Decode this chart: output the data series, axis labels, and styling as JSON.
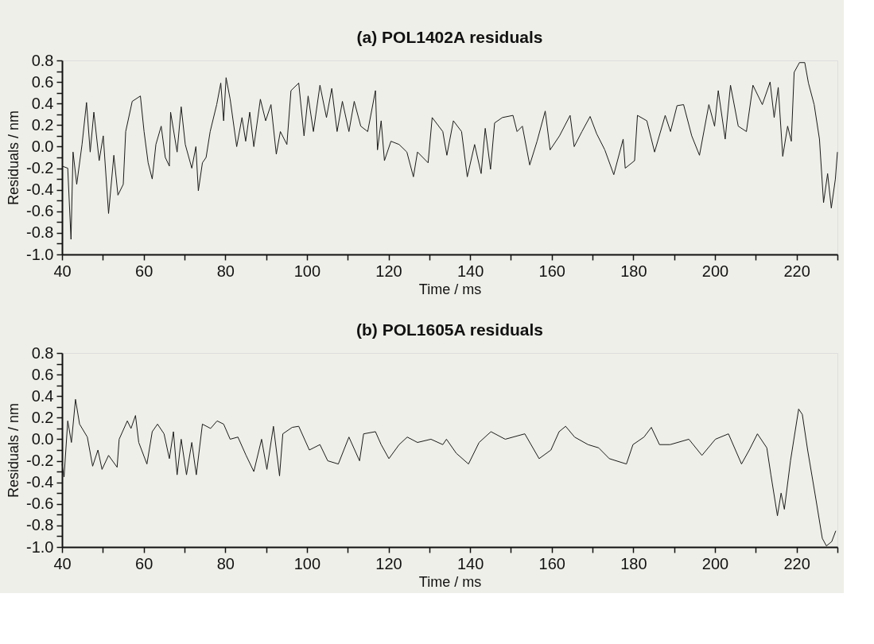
{
  "chart_data": [
    {
      "type": "line",
      "title": "(a) POL1402A residuals",
      "xlabel": "Time / ms",
      "ylabel": "Residuals / nm",
      "xlim": [
        40,
        230
      ],
      "ylim": [
        -1.0,
        0.8
      ],
      "xticks": [
        40,
        {
          "value": 50,
          "label": null
        },
        60,
        {
          "value": 70,
          "label": null
        },
        80,
        {
          "value": 90,
          "label": null
        },
        100,
        {
          "value": 110,
          "label": null
        },
        120,
        {
          "value": 130,
          "label": null
        },
        140,
        {
          "value": 150,
          "label": null
        },
        160,
        {
          "value": 170,
          "label": null
        },
        180,
        {
          "value": 190,
          "label": null
        },
        200,
        {
          "value": 210,
          "label": null
        },
        220,
        {
          "value": 230,
          "label": null
        }
      ],
      "yticks": [
        {
          "value": 0.8,
          "label": "0.8"
        },
        {
          "value": 0.7,
          "label": null
        },
        {
          "value": 0.6,
          "label": "0.6"
        },
        {
          "value": 0.5,
          "label": null
        },
        {
          "value": 0.4,
          "label": "0.4"
        },
        {
          "value": 0.3,
          "label": null
        },
        {
          "value": 0.2,
          "label": "0.2"
        },
        {
          "value": 0.1,
          "label": null
        },
        {
          "value": 0,
          "label": "0.0"
        },
        {
          "value": -0.1,
          "label": null
        },
        {
          "value": -0.2,
          "label": "-0.2"
        },
        {
          "value": -0.3,
          "label": null
        },
        {
          "value": -0.4,
          "label": "-0.4"
        },
        {
          "value": -0.5,
          "label": null
        },
        {
          "value": -0.6,
          "label": "-0.6"
        },
        {
          "value": -0.7,
          "label": null
        },
        {
          "value": -0.8,
          "label": "-0.8"
        },
        {
          "value": -0.9,
          "label": null
        },
        {
          "value": -1.0,
          "label": "-1.0"
        }
      ],
      "grid": false,
      "marker": "none",
      "line_style": "solid",
      "series": [
        {
          "color": "#1a1a1a",
          "x": [
            40.0,
            41.4,
            42.2,
            42.7,
            43.6,
            44.9,
            46.0,
            46.9,
            47.8,
            49.1,
            50.1,
            51.4,
            52.7,
            53.7,
            55.0,
            55.6,
            57.2,
            59.2,
            60.1,
            61.1,
            62.1,
            63.0,
            64.3,
            65.3,
            66.3,
            66.6,
            68.2,
            69.2,
            70.2,
            71.8,
            72.8,
            73.4,
            74.4,
            75.3,
            76.3,
            77.9,
            78.9,
            79.6,
            80.2,
            81.2,
            82.8,
            84.1,
            85.0,
            86.0,
            87.0,
            88.6,
            89.9,
            91.2,
            92.5,
            93.5,
            95.1,
            96.1,
            98.0,
            99.3,
            100.3,
            101.6,
            103.2,
            104.8,
            106.1,
            107.4,
            108.7,
            110.3,
            111.6,
            113.2,
            114.9,
            116.8,
            117.3,
            118.2,
            119.0,
            120.6,
            122.6,
            124.5,
            126.1,
            127.1,
            129.7,
            130.7,
            133.3,
            134.3,
            135.9,
            137.9,
            139.3,
            141.1,
            142.7,
            143.7,
            145.0,
            146.0,
            147.9,
            150.5,
            151.5,
            152.8,
            154.6,
            156.4,
            158.4,
            159.6,
            161.9,
            164.5,
            165.5,
            167.4,
            169.4,
            171.0,
            173.0,
            175.2,
            177.5,
            178.0,
            180.3,
            181.0,
            183.3,
            185.2,
            187.8,
            189.1,
            190.7,
            192.3,
            194.3,
            196.2,
            198.5,
            199.9,
            200.8,
            202.5,
            203.8,
            205.7,
            207.7,
            209.3,
            211.6,
            213.5,
            214.5,
            215.5,
            216.6,
            217.8,
            218.7,
            219.4,
            220.7,
            222.0,
            222.9,
            224.3,
            225.6,
            226.6,
            227.6,
            228.5,
            229.5,
            230.0
          ],
          "values": [
            -0.18,
            -0.2,
            -0.86,
            -0.05,
            -0.35,
            0.02,
            0.41,
            -0.05,
            0.32,
            -0.13,
            0.1,
            -0.62,
            -0.08,
            -0.45,
            -0.35,
            0.14,
            0.42,
            0.47,
            0.14,
            -0.15,
            -0.3,
            0.02,
            0.19,
            -0.1,
            -0.18,
            0.32,
            -0.05,
            0.37,
            0.02,
            -0.2,
            0.0,
            -0.41,
            -0.15,
            -0.1,
            0.14,
            0.39,
            0.59,
            0.24,
            0.64,
            0.44,
            0.0,
            0.27,
            0.05,
            0.32,
            0.0,
            0.44,
            0.24,
            0.39,
            -0.07,
            0.14,
            0.02,
            0.52,
            0.59,
            0.1,
            0.47,
            0.14,
            0.57,
            0.27,
            0.54,
            0.14,
            0.42,
            0.14,
            0.42,
            0.19,
            0.14,
            0.52,
            -0.03,
            0.24,
            -0.13,
            0.05,
            0.02,
            -0.05,
            -0.28,
            -0.05,
            -0.15,
            0.27,
            0.14,
            -0.08,
            0.24,
            0.14,
            -0.28,
            0.02,
            -0.25,
            0.17,
            -0.21,
            0.22,
            0.27,
            0.29,
            0.14,
            0.19,
            -0.17,
            0.05,
            0.33,
            -0.03,
            0.1,
            0.29,
            0.0,
            0.14,
            0.28,
            0.12,
            -0.03,
            -0.26,
            0.07,
            -0.2,
            -0.13,
            0.29,
            0.24,
            -0.05,
            0.29,
            0.14,
            0.38,
            0.39,
            0.1,
            -0.08,
            0.39,
            0.19,
            0.52,
            0.07,
            0.57,
            0.19,
            0.14,
            0.57,
            0.39,
            0.6,
            0.27,
            0.55,
            -0.09,
            0.19,
            0.05,
            0.69,
            0.78,
            0.78,
            0.59,
            0.39,
            0.07,
            -0.52,
            -0.25,
            -0.57,
            -0.3,
            -0.05
          ]
        }
      ]
    },
    {
      "type": "line",
      "title": "(b) POL1605A residuals",
      "xlabel": "Time / ms",
      "ylabel": "Residuals / nm",
      "xlim": [
        40,
        230
      ],
      "ylim": [
        -1.0,
        0.8
      ],
      "xticks": [
        40,
        {
          "value": 50,
          "label": null
        },
        60,
        {
          "value": 70,
          "label": null
        },
        80,
        {
          "value": 90,
          "label": null
        },
        100,
        {
          "value": 110,
          "label": null
        },
        120,
        {
          "value": 130,
          "label": null
        },
        140,
        {
          "value": 150,
          "label": null
        },
        160,
        {
          "value": 170,
          "label": null
        },
        180,
        {
          "value": 190,
          "label": null
        },
        200,
        {
          "value": 210,
          "label": null
        },
        220,
        {
          "value": 230,
          "label": null
        }
      ],
      "yticks": [
        {
          "value": 0.8,
          "label": "0.8"
        },
        {
          "value": 0.7,
          "label": null
        },
        {
          "value": 0.6,
          "label": "0.6"
        },
        {
          "value": 0.5,
          "label": null
        },
        {
          "value": 0.4,
          "label": "0.4"
        },
        {
          "value": 0.3,
          "label": null
        },
        {
          "value": 0.2,
          "label": "0.2"
        },
        {
          "value": 0.1,
          "label": null
        },
        {
          "value": 0,
          "label": "0.0"
        },
        {
          "value": -0.1,
          "label": null
        },
        {
          "value": -0.2,
          "label": "-0.2"
        },
        {
          "value": -0.3,
          "label": null
        },
        {
          "value": -0.4,
          "label": "-0.4"
        },
        {
          "value": -0.5,
          "label": null
        },
        {
          "value": -0.6,
          "label": "-0.6"
        },
        {
          "value": -0.7,
          "label": null
        },
        {
          "value": -0.8,
          "label": "-0.8"
        },
        {
          "value": -0.9,
          "label": null
        },
        {
          "value": -1.0,
          "label": "-1.0"
        }
      ],
      "grid": false,
      "marker": "none",
      "line_style": "solid",
      "series": [
        {
          "color": "#1a1a1a",
          "x": [
            40.0,
            40.5,
            41.4,
            42.3,
            43.3,
            44.3,
            46.2,
            47.5,
            48.8,
            49.8,
            51.4,
            53.5,
            54.0,
            56.0,
            56.9,
            58.0,
            58.8,
            60.8,
            62.1,
            63.4,
            65.0,
            66.3,
            67.3,
            68.2,
            69.2,
            70.5,
            71.8,
            72.9,
            74.4,
            76.4,
            78.0,
            79.6,
            81.2,
            83.1,
            85.1,
            87.0,
            88.9,
            90.2,
            91.8,
            93.3,
            94.1,
            96.4,
            98.0,
            100.6,
            103.2,
            105.1,
            107.7,
            110.3,
            112.9,
            113.9,
            116.8,
            118.2,
            120.1,
            122.6,
            124.6,
            127.1,
            130.4,
            133.3,
            134.2,
            136.6,
            139.6,
            142.2,
            145.1,
            148.6,
            153.4,
            156.9,
            159.8,
            161.8,
            163.4,
            165.6,
            168.9,
            171.5,
            174.1,
            178.3,
            179.9,
            182.6,
            184.4,
            186.4,
            189.0,
            193.6,
            196.8,
            200.1,
            203.3,
            206.5,
            208.4,
            210.4,
            212.7,
            213.7,
            215.3,
            216.2,
            217.0,
            218.5,
            220.5,
            221.4,
            222.7,
            224.7,
            226.3,
            227.3,
            228.6,
            229.6
          ],
          "values": [
            -0.23,
            -0.35,
            0.17,
            -0.03,
            0.37,
            0.14,
            0.02,
            -0.25,
            -0.1,
            -0.28,
            -0.15,
            -0.26,
            0.0,
            0.17,
            0.1,
            0.22,
            -0.03,
            -0.23,
            0.07,
            0.14,
            0.05,
            -0.18,
            0.07,
            -0.33,
            0.0,
            -0.33,
            -0.03,
            -0.33,
            0.14,
            0.1,
            0.17,
            0.14,
            0.0,
            0.02,
            -0.15,
            -0.3,
            0.0,
            -0.28,
            0.12,
            -0.34,
            0.05,
            0.11,
            0.12,
            -0.1,
            -0.05,
            -0.2,
            -0.23,
            0.02,
            -0.2,
            0.05,
            0.07,
            -0.05,
            -0.18,
            -0.05,
            0.02,
            -0.03,
            0.0,
            -0.05,
            0.0,
            -0.13,
            -0.23,
            -0.03,
            0.07,
            0.0,
            0.05,
            -0.18,
            -0.1,
            0.07,
            0.12,
            0.02,
            -0.05,
            -0.08,
            -0.18,
            -0.23,
            -0.05,
            0.02,
            0.11,
            -0.05,
            -0.05,
            0.0,
            -0.15,
            0.0,
            0.05,
            -0.23,
            -0.1,
            0.05,
            -0.08,
            -0.33,
            -0.71,
            -0.5,
            -0.65,
            -0.2,
            0.28,
            0.23,
            -0.1,
            -0.55,
            -0.92,
            -0.99,
            -0.95,
            -0.85
          ]
        }
      ]
    }
  ]
}
